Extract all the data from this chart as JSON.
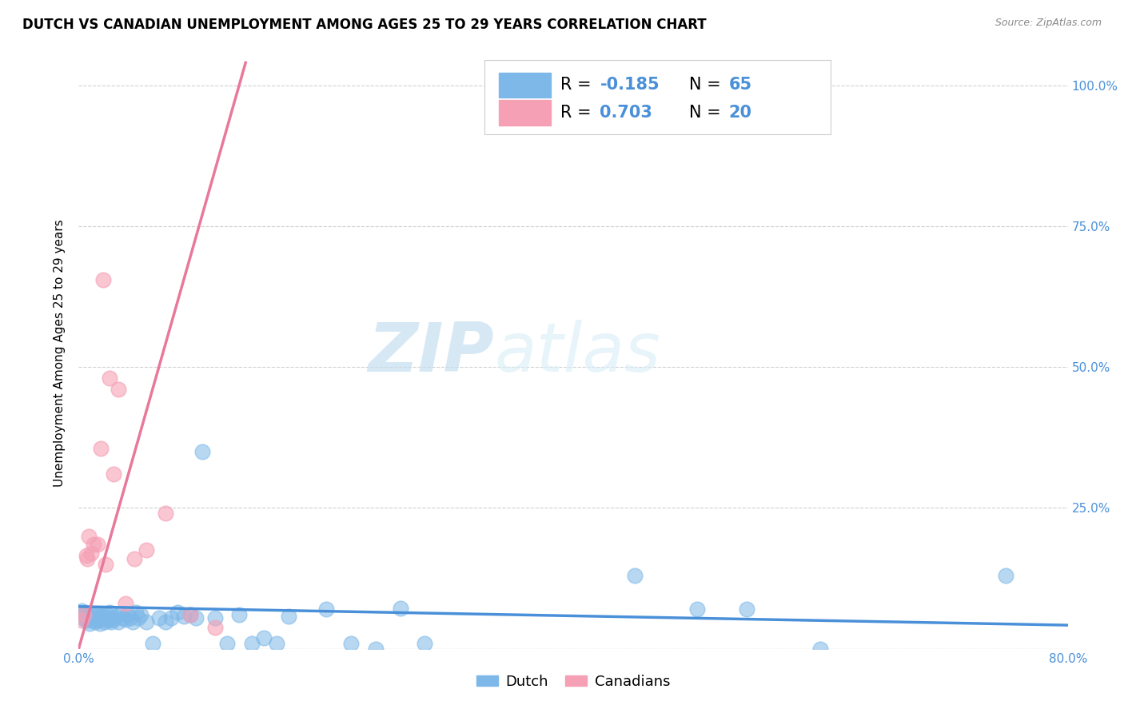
{
  "title": "DUTCH VS CANADIAN UNEMPLOYMENT AMONG AGES 25 TO 29 YEARS CORRELATION CHART",
  "source": "Source: ZipAtlas.com",
  "ylabel": "Unemployment Among Ages 25 to 29 years",
  "xlim": [
    0,
    0.8
  ],
  "ylim": [
    0,
    1.05
  ],
  "xtick_positions": [
    0.0,
    0.1,
    0.2,
    0.3,
    0.4,
    0.5,
    0.6,
    0.7,
    0.8
  ],
  "xtick_labels": [
    "0.0%",
    "",
    "",
    "",
    "",
    "",
    "",
    "",
    "80.0%"
  ],
  "ytick_positions": [
    0.0,
    0.25,
    0.5,
    0.75,
    1.0
  ],
  "right_ytick_labels": [
    "",
    "25.0%",
    "50.0%",
    "75.0%",
    "100.0%"
  ],
  "dutch_color": "#7eb8e8",
  "canadian_color": "#f5a0b5",
  "dutch_line_color": "#4a90d9",
  "canadian_line_color": "#e8799a",
  "dutch_R": -0.185,
  "dutch_N": 65,
  "canadian_R": 0.703,
  "canadian_N": 20,
  "watermark_zip": "ZIP",
  "watermark_atlas": "atlas",
  "dutch_scatter_x": [
    0.002,
    0.003,
    0.004,
    0.005,
    0.006,
    0.007,
    0.008,
    0.009,
    0.01,
    0.011,
    0.012,
    0.013,
    0.014,
    0.015,
    0.016,
    0.017,
    0.018,
    0.019,
    0.02,
    0.021,
    0.022,
    0.023,
    0.024,
    0.025,
    0.026,
    0.027,
    0.028,
    0.03,
    0.032,
    0.034,
    0.036,
    0.038,
    0.04,
    0.042,
    0.044,
    0.046,
    0.048,
    0.05,
    0.055,
    0.06,
    0.065,
    0.07,
    0.075,
    0.08,
    0.085,
    0.09,
    0.095,
    0.1,
    0.11,
    0.12,
    0.13,
    0.14,
    0.15,
    0.16,
    0.17,
    0.2,
    0.22,
    0.24,
    0.26,
    0.28,
    0.45,
    0.5,
    0.54,
    0.6,
    0.75
  ],
  "dutch_scatter_y": [
    0.068,
    0.055,
    0.06,
    0.065,
    0.05,
    0.055,
    0.058,
    0.045,
    0.06,
    0.05,
    0.062,
    0.048,
    0.055,
    0.06,
    0.05,
    0.045,
    0.058,
    0.055,
    0.062,
    0.048,
    0.055,
    0.06,
    0.05,
    0.065,
    0.048,
    0.055,
    0.052,
    0.058,
    0.048,
    0.062,
    0.055,
    0.052,
    0.06,
    0.055,
    0.048,
    0.065,
    0.055,
    0.06,
    0.048,
    0.01,
    0.055,
    0.048,
    0.055,
    0.065,
    0.058,
    0.06,
    0.055,
    0.35,
    0.055,
    0.01,
    0.06,
    0.01,
    0.02,
    0.01,
    0.058,
    0.07,
    0.01,
    0.0,
    0.072,
    0.01,
    0.13,
    0.07,
    0.07,
    0.0,
    0.13
  ],
  "canadian_scatter_x": [
    0.002,
    0.004,
    0.006,
    0.007,
    0.008,
    0.01,
    0.012,
    0.015,
    0.018,
    0.02,
    0.022,
    0.025,
    0.028,
    0.032,
    0.038,
    0.045,
    0.055,
    0.07,
    0.09,
    0.11
  ],
  "canadian_scatter_y": [
    0.05,
    0.06,
    0.165,
    0.16,
    0.2,
    0.17,
    0.185,
    0.185,
    0.355,
    0.655,
    0.15,
    0.48,
    0.31,
    0.46,
    0.08,
    0.16,
    0.175,
    0.24,
    0.06,
    0.038
  ],
  "dutch_trendline_x": [
    0.0,
    0.8
  ],
  "dutch_trendline_y": [
    0.075,
    0.042
  ],
  "canadian_trendline_x": [
    -0.002,
    0.135
  ],
  "canadian_trendline_y": [
    -0.015,
    1.04
  ],
  "background_color": "#ffffff",
  "grid_color": "#d0d0d0",
  "title_fontsize": 12,
  "axis_fontsize": 11,
  "tick_fontsize": 11,
  "legend_fontsize": 14
}
